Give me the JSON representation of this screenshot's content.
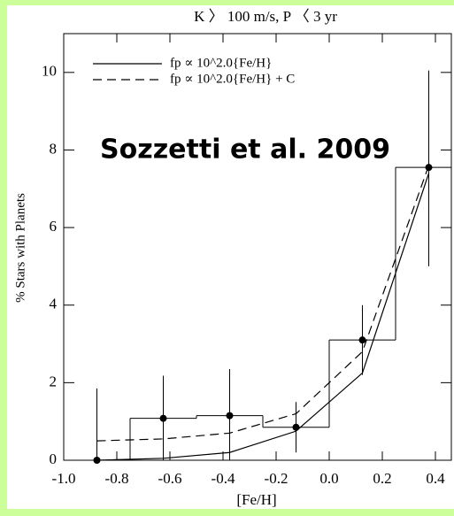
{
  "chart_data": {
    "type": "histogram",
    "title": "K 〉 100 m/s, P 〈 3 yr",
    "xlabel": "[Fe/H]",
    "ylabel": "% Stars with Planets",
    "annotation": "Sozzetti et al. 2009",
    "bins": [
      -1.0,
      -0.75,
      -0.5,
      -0.25,
      0.0,
      0.25,
      0.5
    ],
    "values": [
      0,
      1.08,
      1.15,
      0.85,
      3.1,
      7.55
    ],
    "error_low": [
      0,
      1.08,
      1.15,
      0.65,
      0.9,
      2.55
    ],
    "error_high": [
      1.85,
      1.1,
      1.2,
      0.65,
      0.9,
      2.5
    ],
    "color": "#000000",
    "series": [
      {
        "name": "fp ∝ 10^2.0{Fe/H}",
        "color": "#000000",
        "dash": false,
        "x": [
          -0.875,
          -0.625,
          -0.375,
          -0.125,
          0.125,
          0.375
        ],
        "values": [
          0,
          0.05,
          0.2,
          0.75,
          2.25,
          7.4
        ]
      },
      {
        "name": "fp ∝ 10^2.0{Fe/H} + C",
        "color": "#000000",
        "dash": true,
        "x": [
          -0.875,
          -0.625,
          -0.375,
          -0.125,
          0.125,
          0.375
        ],
        "values": [
          0.5,
          0.55,
          0.7,
          1.2,
          2.8,
          7.6
        ]
      }
    ],
    "xlim": [
      -1.0,
      0.46
    ],
    "ylim": [
      0,
      11
    ],
    "xticks": [
      {
        "value": -1.0,
        "label": "-1.0"
      },
      -0.8,
      -0.6,
      -0.4,
      -0.2,
      {
        "value": 0.0,
        "label": "0.0"
      },
      0.2,
      0.4
    ],
    "yticks": [
      0,
      2,
      4,
      6,
      8,
      10
    ],
    "legend": "upper left"
  }
}
